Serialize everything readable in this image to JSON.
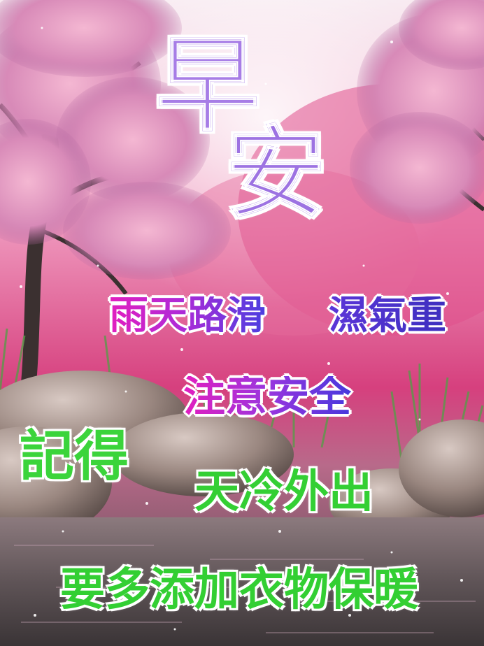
{
  "card": {
    "greeting": {
      "zao": "早",
      "an": "安"
    },
    "lines": {
      "rain_road": "雨天路滑",
      "humidity": "濕氣重",
      "safety": "注意安全",
      "remember": "記得",
      "cold_out": "天冷外出",
      "warm_clothes": "要多添加衣物保暖"
    }
  },
  "colors": {
    "greeting_purple": "#a77de6",
    "magenta": "#e21fbf",
    "violet": "#4b3fe0",
    "green": "#3bd43b"
  },
  "scene_icons": [
    "cherry-blossom-tree-icon",
    "rock-icon",
    "water-icon",
    "grass-icon"
  ]
}
